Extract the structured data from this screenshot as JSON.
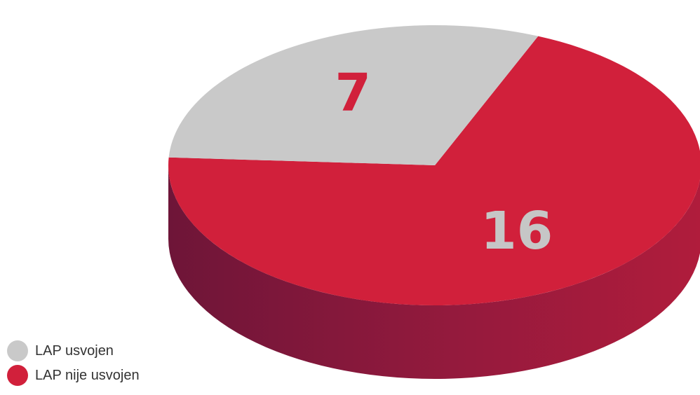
{
  "chart_data": {
    "type": "pie",
    "title": "",
    "slices": [
      {
        "label": "LAP nije usvojen",
        "value": 16,
        "color": "#d1203b",
        "side_color": "#8c1a3c"
      },
      {
        "label": "LAP usvojen",
        "value": 7,
        "color": "#c9c9c9",
        "side_color": "#a9a9a9"
      }
    ],
    "legend": {
      "position": "bottom-left",
      "items": [
        {
          "label": "LAP usvojen",
          "color": "#c9c9c9"
        },
        {
          "label": "LAP nije usvojen",
          "color": "#d1203b"
        }
      ]
    },
    "data_labels": [
      "16",
      "7"
    ],
    "style": "3d-disc"
  }
}
